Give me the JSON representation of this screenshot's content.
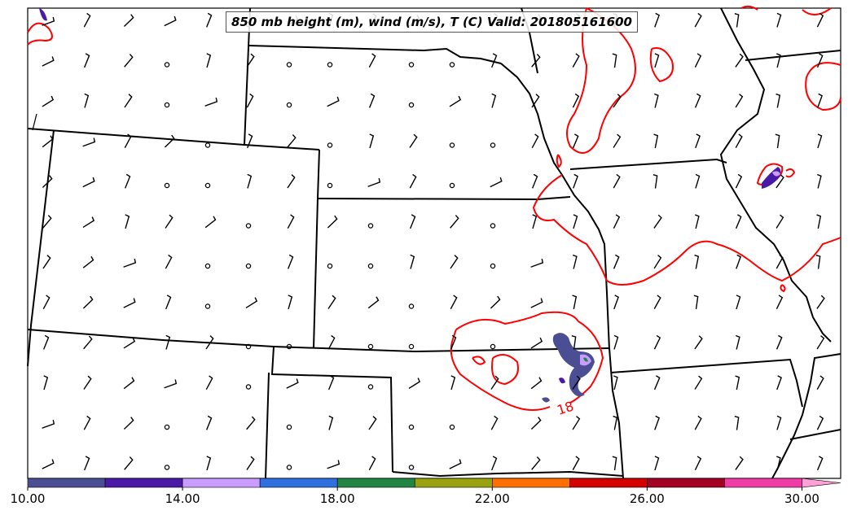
{
  "title": "850 mb height (m), wind (m/s), T (C) Valid: 201805161600",
  "contour_label": "18",
  "colorbar": {
    "ticks": [
      "10.00",
      "14.00",
      "18.00",
      "22.00",
      "26.00",
      "30.00"
    ],
    "min": 10,
    "max": 31,
    "bins": [
      {
        "from": 10,
        "to": 12,
        "color": "#4c4e94"
      },
      {
        "from": 12,
        "to": 14,
        "color": "#4a1aa6"
      },
      {
        "from": 14,
        "to": 16,
        "color": "#c99cff"
      },
      {
        "from": 16,
        "to": 18,
        "color": "#2f6fe0"
      },
      {
        "from": 18,
        "to": 20,
        "color": "#238543"
      },
      {
        "from": 20,
        "to": 22,
        "color": "#9aa30f"
      },
      {
        "from": 22,
        "to": 24,
        "color": "#ff6e00"
      },
      {
        "from": 24,
        "to": 26,
        "color": "#d40000"
      },
      {
        "from": 26,
        "to": 28,
        "color": "#a30024"
      },
      {
        "from": 28,
        "to": 30,
        "color": "#f03ca6"
      },
      {
        "from": 30,
        "to": 31,
        "color": "#ffa0d8"
      }
    ]
  },
  "colors": {
    "temperature_contour": "#ff0000",
    "boundaries": "#000000"
  }
}
